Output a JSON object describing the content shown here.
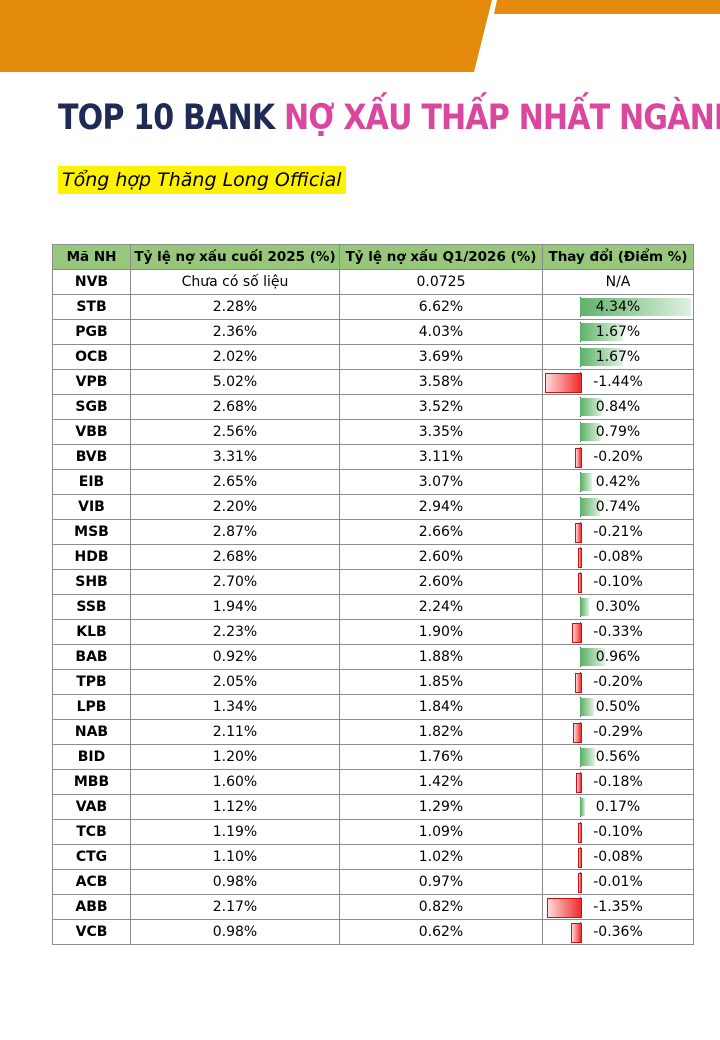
{
  "header": {
    "title_part1": "TOP 10 BANK",
    "title_part2": "NỢ XẤU THẤP NHẤT NGÀNH",
    "subtitle": "Tổng hợp Thăng Long Official"
  },
  "colors": {
    "banner": "#e48a0d",
    "title_dark": "#1f2a55",
    "title_pink": "#d9479f",
    "highlight": "#fff200",
    "header_bg": "#97c77b",
    "positive_bar": "#5fb36a",
    "negative_bar": "#ef2b2b"
  },
  "table": {
    "columns": [
      "Mã NH",
      "Tỷ lệ nợ xấu cuối 2025 (%)",
      "Tỷ lệ nợ xấu Q1/2026 (%)",
      "Thay đổi (Điểm %)"
    ],
    "rows": [
      {
        "code": "NVB",
        "end2025": "Chưa có số liệu",
        "q1_2026": "0.0725",
        "change": "N/A",
        "change_value": null
      },
      {
        "code": "STB",
        "end2025": "2.28%",
        "q1_2026": "6.62%",
        "change": "4.34%",
        "change_value": 4.34
      },
      {
        "code": "PGB",
        "end2025": "2.36%",
        "q1_2026": "4.03%",
        "change": "1.67%",
        "change_value": 1.67
      },
      {
        "code": "OCB",
        "end2025": "2.02%",
        "q1_2026": "3.69%",
        "change": "1.67%",
        "change_value": 1.67
      },
      {
        "code": "VPB",
        "end2025": "5.02%",
        "q1_2026": "3.58%",
        "change": "-1.44%",
        "change_value": -1.44
      },
      {
        "code": "SGB",
        "end2025": "2.68%",
        "q1_2026": "3.52%",
        "change": "0.84%",
        "change_value": 0.84
      },
      {
        "code": "VBB",
        "end2025": "2.56%",
        "q1_2026": "3.35%",
        "change": "0.79%",
        "change_value": 0.79
      },
      {
        "code": "BVB",
        "end2025": "3.31%",
        "q1_2026": "3.11%",
        "change": "-0.20%",
        "change_value": -0.2
      },
      {
        "code": "EIB",
        "end2025": "2.65%",
        "q1_2026": "3.07%",
        "change": "0.42%",
        "change_value": 0.42
      },
      {
        "code": "VIB",
        "end2025": "2.20%",
        "q1_2026": "2.94%",
        "change": "0.74%",
        "change_value": 0.74
      },
      {
        "code": "MSB",
        "end2025": "2.87%",
        "q1_2026": "2.66%",
        "change": "-0.21%",
        "change_value": -0.21
      },
      {
        "code": "HDB",
        "end2025": "2.68%",
        "q1_2026": "2.60%",
        "change": "-0.08%",
        "change_value": -0.08
      },
      {
        "code": "SHB",
        "end2025": "2.70%",
        "q1_2026": "2.60%",
        "change": "-0.10%",
        "change_value": -0.1
      },
      {
        "code": "SSB",
        "end2025": "1.94%",
        "q1_2026": "2.24%",
        "change": "0.30%",
        "change_value": 0.3
      },
      {
        "code": "KLB",
        "end2025": "2.23%",
        "q1_2026": "1.90%",
        "change": "-0.33%",
        "change_value": -0.33
      },
      {
        "code": "BAB",
        "end2025": "0.92%",
        "q1_2026": "1.88%",
        "change": "0.96%",
        "change_value": 0.96
      },
      {
        "code": "TPB",
        "end2025": "2.05%",
        "q1_2026": "1.85%",
        "change": "-0.20%",
        "change_value": -0.2
      },
      {
        "code": "LPB",
        "end2025": "1.34%",
        "q1_2026": "1.84%",
        "change": "0.50%",
        "change_value": 0.5
      },
      {
        "code": "NAB",
        "end2025": "2.11%",
        "q1_2026": "1.82%",
        "change": "-0.29%",
        "change_value": -0.29
      },
      {
        "code": "BID",
        "end2025": "1.20%",
        "q1_2026": "1.76%",
        "change": "0.56%",
        "change_value": 0.56
      },
      {
        "code": "MBB",
        "end2025": "1.60%",
        "q1_2026": "1.42%",
        "change": "-0.18%",
        "change_value": -0.18
      },
      {
        "code": "VAB",
        "end2025": "1.12%",
        "q1_2026": "1.29%",
        "change": "0.17%",
        "change_value": 0.17
      },
      {
        "code": "TCB",
        "end2025": "1.19%",
        "q1_2026": "1.09%",
        "change": "-0.10%",
        "change_value": -0.1
      },
      {
        "code": "CTG",
        "end2025": "1.10%",
        "q1_2026": "1.02%",
        "change": "-0.08%",
        "change_value": -0.08
      },
      {
        "code": "ACB",
        "end2025": "0.98%",
        "q1_2026": "0.97%",
        "change": "-0.01%",
        "change_value": -0.01
      },
      {
        "code": "ABB",
        "end2025": "2.17%",
        "q1_2026": "0.82%",
        "change": "-1.35%",
        "change_value": -1.35
      },
      {
        "code": "VCB",
        "end2025": "0.98%",
        "q1_2026": "0.62%",
        "change": "-0.36%",
        "change_value": -0.36
      }
    ]
  }
}
